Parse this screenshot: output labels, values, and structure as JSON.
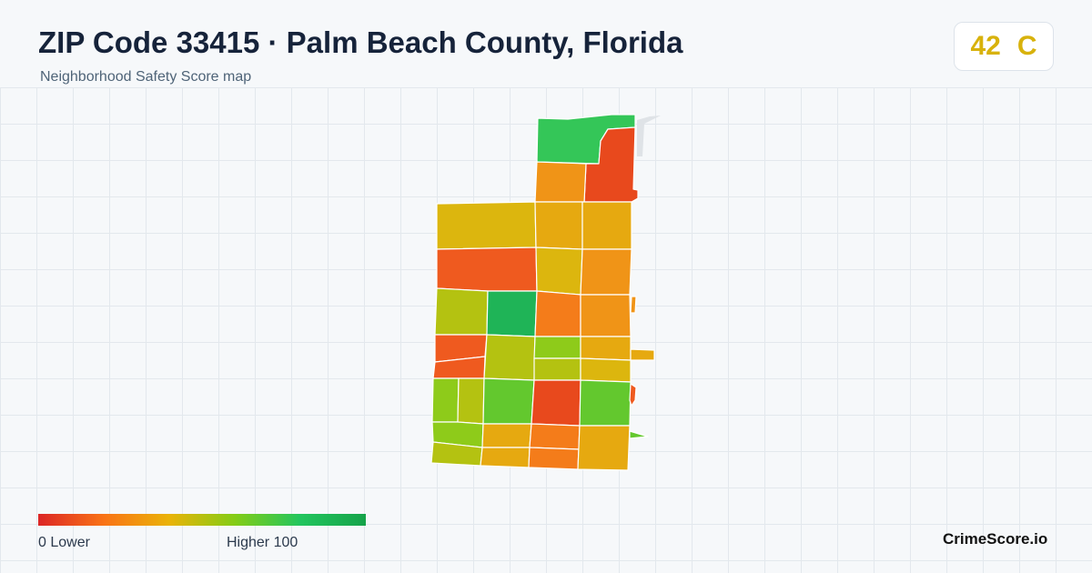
{
  "header": {
    "title": "ZIP Code 33415 · Palm Beach County, Florida",
    "subtitle": "Neighborhood Safety Score map"
  },
  "score": {
    "value": "42",
    "grade": "C",
    "color": "#d8b20c"
  },
  "legend": {
    "min_label": "0  Lower",
    "max_label": "Higher  100",
    "colors": [
      "#dc2626",
      "#f97316",
      "#eab308",
      "#84cc16",
      "#22c55e",
      "#16a34a"
    ]
  },
  "brand": "CrimeScore.io",
  "map": {
    "land_color": "#dfe3e7",
    "tract_colors": {
      "red": "#e8491d",
      "red_orange": "#ef5a1f",
      "orange": "#f47c1a",
      "orange_amber": "#f09417",
      "amber": "#e6a910",
      "gold": "#dcb60e",
      "yellow_green": "#b4c211",
      "lime": "#8ecb1a",
      "light_green": "#63c82e",
      "green": "#34c658",
      "dark_green": "#1fb457"
    }
  }
}
